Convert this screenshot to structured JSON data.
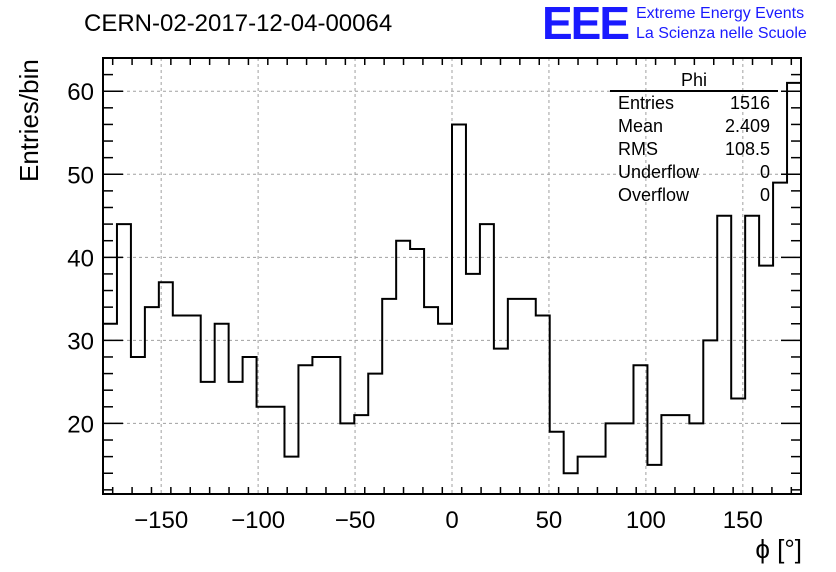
{
  "header": {
    "run_title": "CERN-02-2017-12-04-00064",
    "logo": "EEE",
    "logo_line1": "Extreme Energy Events",
    "logo_line2": "La Scienza nelle Scuole"
  },
  "stats_box": {
    "title": "Phi",
    "rows": [
      {
        "label": "Entries",
        "value": "1516"
      },
      {
        "label": "Mean",
        "value": "2.409"
      },
      {
        "label": "RMS",
        "value": "108.5"
      },
      {
        "label": "Underflow",
        "value": "0"
      },
      {
        "label": "Overflow",
        "value": "0"
      }
    ]
  },
  "chart_data": {
    "type": "histogram",
    "title": "CERN-02-2017-12-04-00064",
    "xlabel": "ϕ [°]",
    "ylabel": "Entries/bin",
    "xlim": [
      -180,
      180
    ],
    "ylim": [
      11.5,
      64
    ],
    "bin_width": 7.2,
    "x_ticks": [
      -150,
      -100,
      -50,
      0,
      50,
      100,
      150
    ],
    "y_ticks": [
      20,
      30,
      40,
      50,
      60
    ],
    "grid": true,
    "line_color": "#000000",
    "values": [
      32,
      44,
      28,
      34,
      37,
      33,
      33,
      25,
      32,
      25,
      28,
      22,
      22,
      16,
      27,
      28,
      28,
      20,
      21,
      26,
      35,
      42,
      41,
      34,
      32,
      56,
      38,
      44,
      29,
      35,
      35,
      33,
      19,
      14,
      16,
      16,
      20,
      20,
      27,
      15,
      21,
      21,
      20,
      30,
      45,
      23,
      45,
      39,
      49,
      61
    ]
  }
}
